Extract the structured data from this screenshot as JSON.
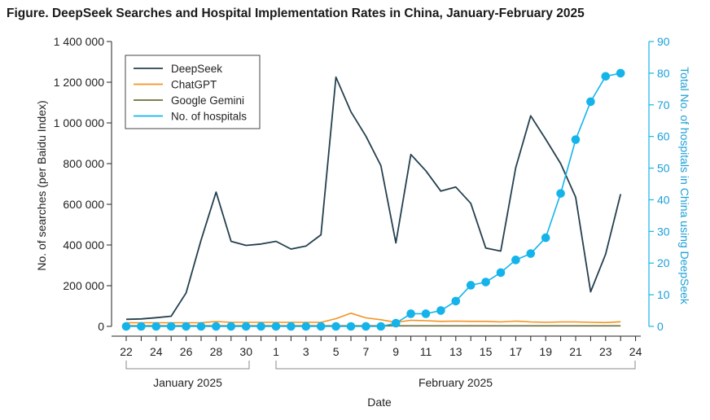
{
  "figure_title": "Figure.  DeepSeek Searches and Hospital Implementation Rates in China, January-February 2025",
  "chart_data": {
    "type": "line",
    "title": "DeepSeek Searches and Hospital Implementation Rates in China, January-February 2025",
    "xlabel": "Date",
    "ylabel": "No. of searches (per Baidu Index)",
    "y2label": "Total No. of hospitals in China using DeepSeek",
    "ylim": [
      0,
      1400000
    ],
    "y2lim": [
      0,
      90
    ],
    "yticks": [
      0,
      200000,
      400000,
      600000,
      800000,
      1000000,
      1200000,
      1400000
    ],
    "ytick_labels": [
      "0",
      "200 000",
      "400 000",
      "600 000",
      "800 000",
      "1 000 000",
      "1 200 000",
      "1 400 000"
    ],
    "y2ticks": [
      0,
      10,
      20,
      30,
      40,
      50,
      60,
      70,
      80,
      90
    ],
    "x_tick_labels": [
      "22",
      "24",
      "26",
      "28",
      "30",
      "1",
      "3",
      "5",
      "7",
      "9",
      "11",
      "13",
      "15",
      "17",
      "19",
      "21",
      "23",
      "24"
    ],
    "month_labels": [
      "January 2025",
      "February 2025"
    ],
    "dates": [
      "Jan 22",
      "Jan 23",
      "Jan 24",
      "Jan 25",
      "Jan 26",
      "Jan 27",
      "Jan 28",
      "Jan 29",
      "Jan 30",
      "Jan 31",
      "Feb 1",
      "Feb 2",
      "Feb 3",
      "Feb 4",
      "Feb 5",
      "Feb 6",
      "Feb 7",
      "Feb 8",
      "Feb 9",
      "Feb 10",
      "Feb 11",
      "Feb 12",
      "Feb 13",
      "Feb 14",
      "Feb 15",
      "Feb 16",
      "Feb 17",
      "Feb 18",
      "Feb 19",
      "Feb 20",
      "Feb 21",
      "Feb 22",
      "Feb 23",
      "Feb 24"
    ],
    "legend": [
      "DeepSeek",
      "ChatGPT",
      "Google Gemini",
      "No. of hospitals"
    ],
    "legend_position": "top-left",
    "series": [
      {
        "name": "DeepSeek",
        "axis": "left",
        "color": "#24404f",
        "values": [
          35000,
          37000,
          43000,
          50000,
          165000,
          425000,
          660000,
          418000,
          398000,
          405000,
          418000,
          380000,
          395000,
          450000,
          1225000,
          1055000,
          935000,
          790000,
          410000,
          845000,
          765000,
          665000,
          685000,
          605000,
          385000,
          370000,
          780000,
          1035000,
          920000,
          800000,
          635000,
          170000,
          355000,
          650000
        ]
      },
      {
        "name": "ChatGPT",
        "axis": "left",
        "color": "#f5921e",
        "values": [
          18000,
          18000,
          18000,
          18000,
          18000,
          18000,
          24000,
          20000,
          20000,
          20000,
          20000,
          20000,
          20000,
          20000,
          38000,
          65000,
          42000,
          33000,
          20000,
          30000,
          28000,
          25000,
          26000,
          25000,
          25000,
          22000,
          26000,
          22000,
          20000,
          22000,
          22000,
          20000,
          19000,
          23000
        ]
      },
      {
        "name": "Google Gemini",
        "axis": "left",
        "color": "#6b6b3a",
        "values": [
          3000,
          3000,
          3000,
          3000,
          3000,
          3000,
          3000,
          3000,
          3000,
          3000,
          3000,
          3000,
          3000,
          3000,
          3000,
          3000,
          3000,
          3000,
          3000,
          3000,
          3000,
          3000,
          3000,
          3000,
          3000,
          3000,
          3000,
          3000,
          3000,
          3000,
          3000,
          3000,
          3000,
          3000
        ]
      },
      {
        "name": "No. of hospitals",
        "axis": "right",
        "color": "#14b4eb",
        "values": [
          0,
          0,
          0,
          0,
          0,
          0,
          0,
          0,
          0,
          0,
          0,
          0,
          0,
          0,
          0,
          0,
          0,
          0,
          1,
          4,
          4,
          5,
          8,
          13,
          14,
          17,
          21,
          23,
          28,
          42,
          59,
          71,
          79,
          80
        ]
      }
    ]
  },
  "colors": {
    "axis": "#222222",
    "right_axis": "#14b4eb"
  }
}
